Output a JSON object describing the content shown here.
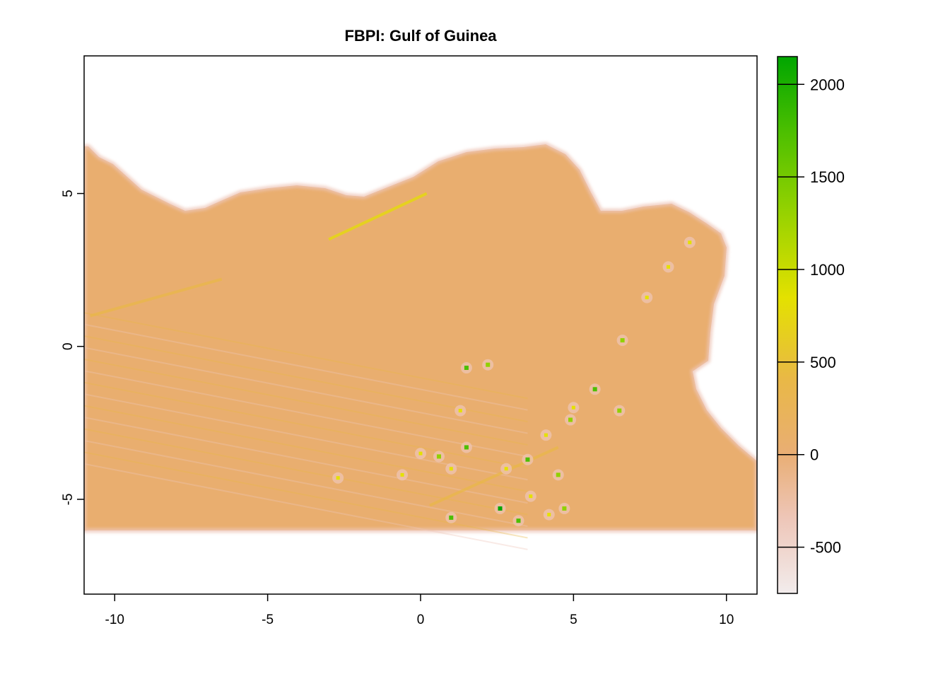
{
  "title": "FBPI: Gulf of Guinea",
  "chart_data": {
    "type": "heatmap",
    "title": "FBPI: Gulf of Guinea",
    "xlabel": "",
    "ylabel": "",
    "xlim": [
      -11,
      11
    ],
    "ylim": [
      -8.1,
      9.5
    ],
    "x_ticks": [
      -10,
      -5,
      0,
      5,
      10
    ],
    "y_ticks": [
      -5,
      0,
      5
    ],
    "data_extent": {
      "x": [
        -11,
        11
      ],
      "y": [
        -6,
        6.6
      ]
    },
    "legend": {
      "placement": "right",
      "range": [
        -750,
        2150
      ],
      "ticks": [
        -500,
        0,
        500,
        1000,
        1500,
        2000
      ],
      "colors": {
        "min": "#f2ecec",
        "neg": "#eec6b8",
        "zero": "#e9ae74",
        "mid": "#e9b846",
        "high_yellow": "#e4e100",
        "light_green": "#91d100",
        "green": "#4cbf00",
        "max": "#00a600"
      }
    },
    "background_color": "#e9ae6f",
    "hotspots": [
      {
        "x": 8.8,
        "y": 3.4,
        "value": 800
      },
      {
        "x": 8.1,
        "y": 2.6,
        "value": 700
      },
      {
        "x": 7.4,
        "y": 1.6,
        "value": 900
      },
      {
        "x": 6.6,
        "y": 0.2,
        "value": 1100
      },
      {
        "x": 5.7,
        "y": -1.4,
        "value": 1500
      },
      {
        "x": 6.5,
        "y": -2.1,
        "value": 1000
      },
      {
        "x": 4.9,
        "y": -2.4,
        "value": 1100
      },
      {
        "x": 3.5,
        "y": -3.7,
        "value": 1400
      },
      {
        "x": 4.5,
        "y": -4.2,
        "value": 1100
      },
      {
        "x": 2.6,
        "y": -5.3,
        "value": 1600
      },
      {
        "x": 3.2,
        "y": -5.7,
        "value": 1500
      },
      {
        "x": 4.7,
        "y": -5.3,
        "value": 1000
      },
      {
        "x": 1.5,
        "y": -3.3,
        "value": 1500
      },
      {
        "x": 1.5,
        "y": -0.7,
        "value": 1300
      },
      {
        "x": 2.2,
        "y": -0.6,
        "value": 1200
      },
      {
        "x": 1.0,
        "y": -5.6,
        "value": 1400
      },
      {
        "x": 0.6,
        "y": -3.6,
        "value": 1100
      },
      {
        "x": 0.0,
        "y": -3.5,
        "value": 900
      },
      {
        "x": 1.3,
        "y": -2.1,
        "value": 900
      },
      {
        "x": -2.7,
        "y": -4.3,
        "value": 800
      },
      {
        "x": 3.6,
        "y": -4.9,
        "value": 900
      },
      {
        "x": 4.2,
        "y": -5.5,
        "value": 900
      },
      {
        "x": 2.8,
        "y": -4.0,
        "value": 900
      },
      {
        "x": 1.0,
        "y": -4.0,
        "value": 800
      },
      {
        "x": -0.6,
        "y": -4.2,
        "value": 700
      },
      {
        "x": 4.1,
        "y": -2.9,
        "value": 800
      },
      {
        "x": 5.0,
        "y": -2.0,
        "value": 800
      }
    ],
    "ridges": [
      {
        "x1": -3.0,
        "y1": 3.5,
        "x2": 0.2,
        "y2": 5.0,
        "value": 700
      },
      {
        "x1": -10.8,
        "y1": 1.0,
        "x2": -6.5,
        "y2": 2.2,
        "value": 500
      },
      {
        "x1": 0.3,
        "y1": -5.2,
        "x2": 4.5,
        "y2": -3.3,
        "value": 500
      }
    ]
  }
}
